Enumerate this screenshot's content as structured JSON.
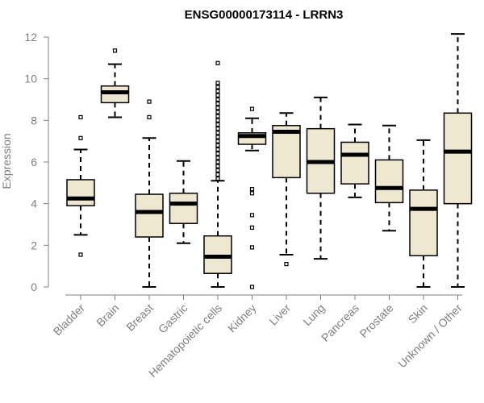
{
  "chart_data": {
    "type": "boxplot",
    "title": "ENSG00000173114 - LRRN3",
    "xlabel": "",
    "ylabel": "Expression",
    "ylim": [
      0,
      12
    ],
    "yticks": [
      0,
      2,
      4,
      6,
      8,
      10,
      12
    ],
    "box_color": "#EEE8D0",
    "categories": [
      "Bladder",
      "Brain",
      "Breast",
      "Gastric",
      "Hematopoietic cells",
      "Kidney",
      "Liver",
      "Lung",
      "Pancreas",
      "Prostate",
      "Skin",
      "Unknown / Other"
    ],
    "boxes": [
      {
        "name": "Bladder",
        "whisker_low": 2.5,
        "q1": 3.9,
        "median": 4.25,
        "q3": 5.15,
        "whisker_high": 6.6,
        "outliers": [
          1.55,
          7.15,
          8.15
        ]
      },
      {
        "name": "Brain",
        "whisker_low": 8.15,
        "q1": 8.85,
        "median": 9.35,
        "q3": 9.65,
        "whisker_high": 10.7,
        "outliers": [
          11.35
        ]
      },
      {
        "name": "Breast",
        "whisker_low": 0.0,
        "q1": 2.4,
        "median": 3.6,
        "q3": 4.45,
        "whisker_high": 7.15,
        "outliers": [
          8.15,
          8.9
        ]
      },
      {
        "name": "Gastric",
        "whisker_low": 2.1,
        "q1": 3.05,
        "median": 4.0,
        "q3": 4.5,
        "whisker_high": 6.05,
        "outliers": []
      },
      {
        "name": "Hematopoietic cells",
        "whisker_low": 0.0,
        "q1": 0.65,
        "median": 1.45,
        "q3": 2.45,
        "whisker_high": 5.1,
        "outliers": [
          5.2,
          5.4,
          5.6,
          5.8,
          6.0,
          6.2,
          6.4,
          6.6,
          6.8,
          7.0,
          7.2,
          7.4,
          7.6,
          7.8,
          8.0,
          8.2,
          8.4,
          8.6,
          8.8,
          9.0,
          9.2,
          9.4,
          9.6,
          9.8,
          10.75
        ]
      },
      {
        "name": "Kidney",
        "whisker_low": 6.55,
        "q1": 6.85,
        "median": 7.25,
        "q3": 7.4,
        "whisker_high": 8.1,
        "outliers": [
          0.0,
          1.9,
          2.85,
          3.45,
          4.5,
          4.7,
          8.55
        ]
      },
      {
        "name": "Liver",
        "whisker_low": 1.55,
        "q1": 5.25,
        "median": 7.45,
        "q3": 7.75,
        "whisker_high": 8.35,
        "outliers": [
          1.1
        ]
      },
      {
        "name": "Lung",
        "whisker_low": 1.35,
        "q1": 4.5,
        "median": 6.0,
        "q3": 7.6,
        "whisker_high": 9.1,
        "outliers": []
      },
      {
        "name": "Pancreas",
        "whisker_low": 4.3,
        "q1": 4.95,
        "median": 6.35,
        "q3": 6.95,
        "whisker_high": 7.8,
        "outliers": []
      },
      {
        "name": "Prostate",
        "whisker_low": 2.7,
        "q1": 4.05,
        "median": 4.75,
        "q3": 6.1,
        "whisker_high": 7.75,
        "outliers": []
      },
      {
        "name": "Skin",
        "whisker_low": 0.0,
        "q1": 1.5,
        "median": 3.75,
        "q3": 4.65,
        "whisker_high": 7.05,
        "outliers": []
      },
      {
        "name": "Unknown / Other",
        "whisker_low": 0.0,
        "q1": 4.0,
        "median": 6.5,
        "q3": 8.35,
        "whisker_high": 12.15,
        "outliers": []
      }
    ]
  }
}
